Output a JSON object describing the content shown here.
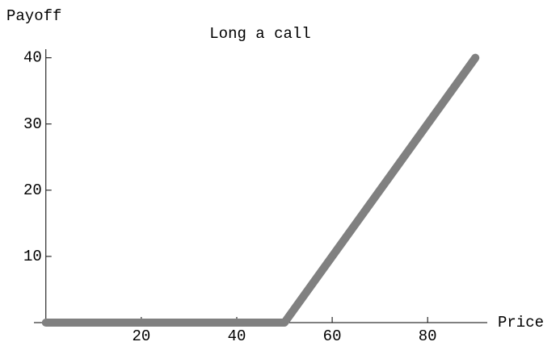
{
  "chart_data": {
    "type": "line",
    "title": "Long a call",
    "y_label": "Payoff",
    "x_label": "Price",
    "x": [
      0,
      50,
      90
    ],
    "series": [
      {
        "name": "Payoff",
        "color": "#808080",
        "values": [
          0,
          0,
          40
        ]
      }
    ],
    "xlim": [
      -2.5,
      92.5
    ],
    "ylim": [
      0,
      41.3
    ],
    "xticks": [
      20,
      40,
      60,
      80
    ],
    "yticks": [
      10,
      20,
      30,
      40
    ]
  }
}
